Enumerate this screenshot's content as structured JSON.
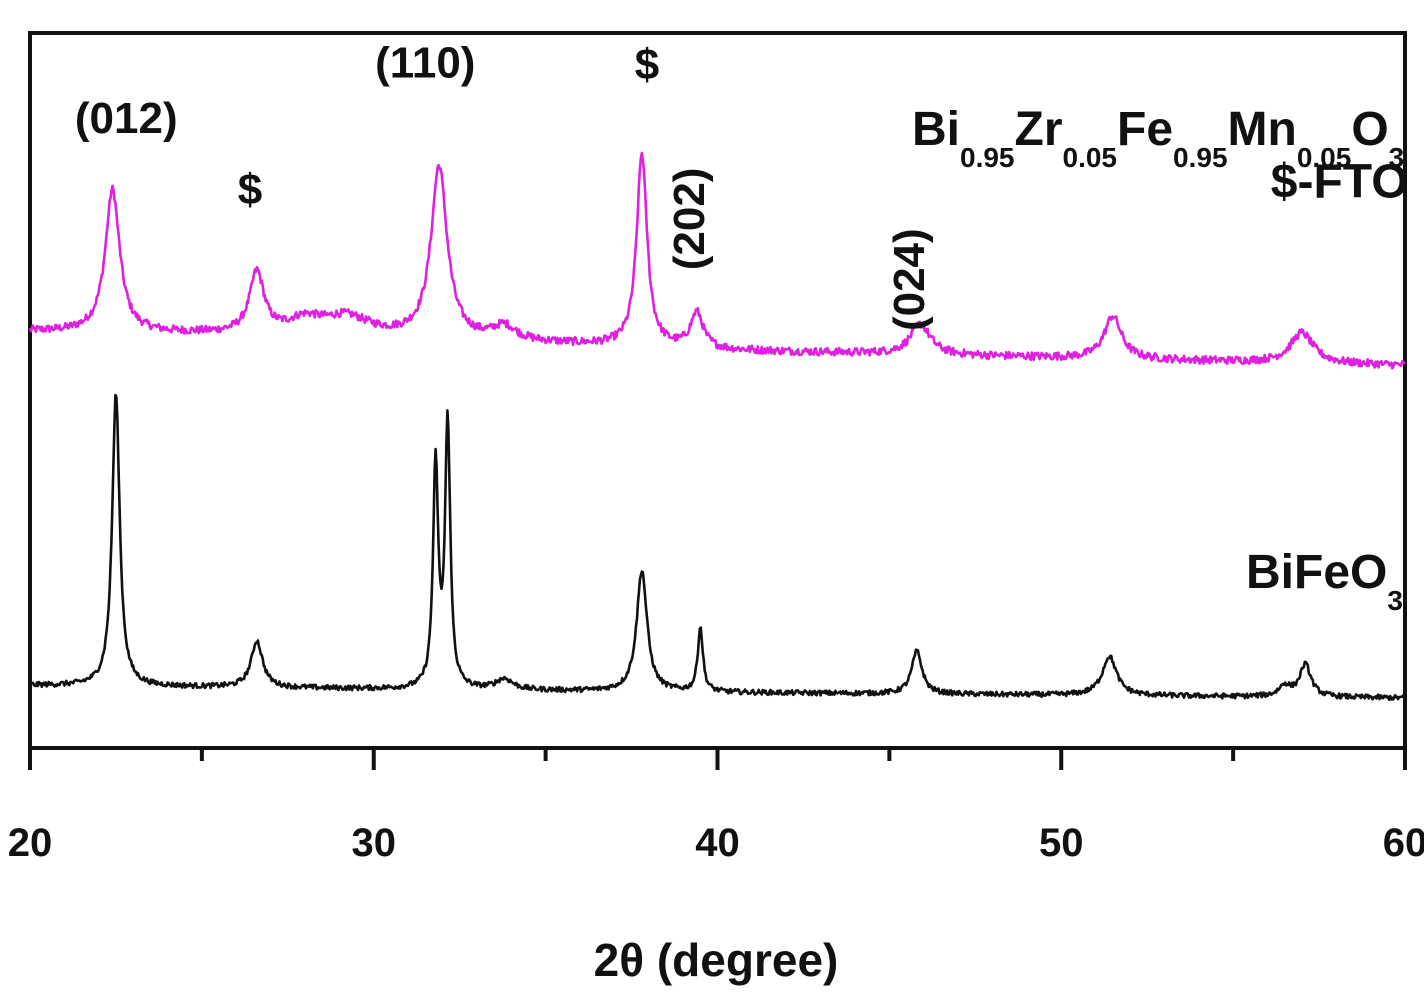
{
  "chart_data": {
    "type": "line",
    "xlabel": "2θ (degree)",
    "ylabel": "",
    "xlim": [
      20,
      60
    ],
    "x_ticks": [
      20,
      30,
      40,
      50,
      60
    ],
    "x_minor_ticks": [
      25,
      35,
      45,
      55
    ],
    "y_ticks": "none",
    "grid": false,
    "series": [
      {
        "name": "Bi0.95Zr0.05Fe0.95Mn0.05O3",
        "label_parts": [
          {
            "t": "Bi",
            "sub": false
          },
          {
            "t": "0.95",
            "sub": true
          },
          {
            "t": "Zr",
            "sub": false
          },
          {
            "t": "0.05",
            "sub": true
          },
          {
            "t": "Fe",
            "sub": false
          },
          {
            "t": "0.95",
            "sub": true
          },
          {
            "t": "Mn",
            "sub": false
          },
          {
            "t": "0.05",
            "sub": true
          },
          {
            "t": "O",
            "sub": false
          },
          {
            "t": "3",
            "sub": true
          }
        ],
        "color": "#e020e0",
        "baseline": [
          [
            20,
            0.165
          ],
          [
            30,
            0.15
          ],
          [
            40,
            0.112
          ],
          [
            60,
            0.07
          ]
        ],
        "noise": 0.011,
        "peaks": [
          {
            "x": 22.4,
            "h": 0.4,
            "w": 0.25
          },
          {
            "x": 26.6,
            "h": 0.17,
            "w": 0.25
          },
          {
            "x": 28.0,
            "h": 0.04,
            "w": 0.6
          },
          {
            "x": 29.2,
            "h": 0.05,
            "w": 0.8
          },
          {
            "x": 31.9,
            "h": 0.48,
            "w": 0.28
          },
          {
            "x": 33.8,
            "h": 0.04,
            "w": 0.4
          },
          {
            "x": 37.8,
            "h": 0.54,
            "w": 0.18
          },
          {
            "x": 39.4,
            "h": 0.1,
            "w": 0.22
          },
          {
            "x": 45.9,
            "h": 0.085,
            "w": 0.35
          },
          {
            "x": 51.5,
            "h": 0.12,
            "w": 0.3
          },
          {
            "x": 57.0,
            "h": 0.085,
            "w": 0.4
          }
        ]
      },
      {
        "name": "BiFeO3",
        "label_parts": [
          {
            "t": "BiFeO",
            "sub": false
          },
          {
            "t": "3",
            "sub": true
          }
        ],
        "color": "#111111",
        "baseline": [
          [
            20,
            -0.825
          ],
          [
            40,
            -0.845
          ],
          [
            60,
            -0.86
          ]
        ],
        "noise": 0.007,
        "peaks": [
          {
            "x": 22.5,
            "h": 0.82,
            "w": 0.13
          },
          {
            "x": 26.6,
            "h": 0.13,
            "w": 0.2
          },
          {
            "x": 31.8,
            "h": 0.62,
            "w": 0.09
          },
          {
            "x": 32.15,
            "h": 0.74,
            "w": 0.09
          },
          {
            "x": 33.8,
            "h": 0.03,
            "w": 0.3
          },
          {
            "x": 37.8,
            "h": 0.34,
            "w": 0.18
          },
          {
            "x": 39.5,
            "h": 0.18,
            "w": 0.09
          },
          {
            "x": 45.8,
            "h": 0.12,
            "w": 0.18
          },
          {
            "x": 51.4,
            "h": 0.11,
            "w": 0.25
          },
          {
            "x": 56.5,
            "h": 0.03,
            "w": 0.2
          },
          {
            "x": 57.1,
            "h": 0.09,
            "w": 0.2
          }
        ]
      }
    ],
    "annotations": [
      {
        "text": "(012)",
        "x": 22.8,
        "y": 0.72,
        "rotate": false
      },
      {
        "text": "$",
        "x": 26.4,
        "y": 0.52,
        "rotate": false
      },
      {
        "text": "(110)",
        "x": 31.5,
        "y": 0.875,
        "rotate": false
      },
      {
        "text": "$",
        "x": 37.95,
        "y": 0.87,
        "rotate": false
      },
      {
        "text": "(202)",
        "x": 39.6,
        "y": 0.48,
        "rotate": true
      },
      {
        "text": "(024)",
        "x": 46.0,
        "y": 0.31,
        "rotate": true
      },
      {
        "text": "$-FTO",
        "x": 58.1,
        "y": 0.54,
        "rotate": false,
        "anchor": "middle"
      }
    ]
  }
}
